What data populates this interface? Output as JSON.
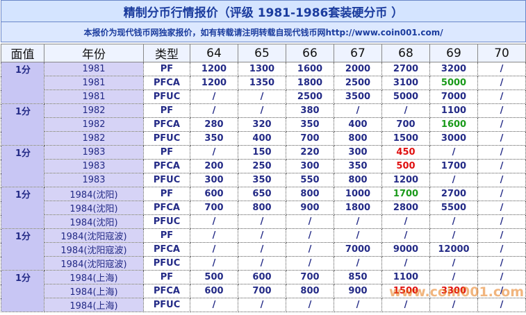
{
  "header": {
    "title": "精制分币行情报价（评级 1981-1986套装硬分币 ）",
    "subtitle": "本报价为现代钱币网独家报价，如有转载请注明转载自现代钱币网http://www.coin001.com/"
  },
  "table": {
    "columns": [
      "面值",
      "年份",
      "类型",
      "64",
      "65",
      "66",
      "67",
      "68",
      "69",
      "70"
    ],
    "groups": [
      {
        "denomination": "1分",
        "rows": [
          {
            "year": "1981",
            "type": "PF",
            "prices": [
              "1200",
              "1300",
              "1600",
              "2000",
              "2700",
              "3200",
              "/"
            ]
          },
          {
            "year": "1981",
            "type": "PFCA",
            "prices": [
              "1200",
              "1350",
              "1800",
              "2500",
              "3100",
              "5000",
              "/"
            ],
            "highlights": [
              {
                "col": 5,
                "color": "#1a9a1a"
              }
            ]
          },
          {
            "year": "1981",
            "type": "PFUC",
            "prices": [
              "/",
              "/",
              "2500",
              "3500",
              "5000",
              "7000",
              "/"
            ]
          }
        ]
      },
      {
        "denomination": "1分",
        "rows": [
          {
            "year": "1982",
            "type": "PF",
            "prices": [
              "/",
              "/",
              "380",
              "/",
              "/",
              "1100",
              "/"
            ]
          },
          {
            "year": "1982",
            "type": "PFCA",
            "prices": [
              "280",
              "320",
              "350",
              "400",
              "700",
              "1600",
              "/"
            ],
            "highlights": [
              {
                "col": 5,
                "color": "#1a9a1a"
              }
            ]
          },
          {
            "year": "1982",
            "type": "PFUC",
            "prices": [
              "350",
              "400",
              "700",
              "800",
              "1500",
              "3000",
              "/"
            ]
          }
        ]
      },
      {
        "denomination": "1分",
        "rows": [
          {
            "year": "1983",
            "type": "PF",
            "prices": [
              "/",
              "150",
              "220",
              "300",
              "450",
              "/",
              "/"
            ],
            "highlights": [
              {
                "col": 4,
                "color": "#e01010"
              }
            ]
          },
          {
            "year": "1983",
            "type": "PFCA",
            "prices": [
              "200",
              "250",
              "300",
              "350",
              "500",
              "1700",
              "/"
            ],
            "highlights": [
              {
                "col": 4,
                "color": "#e01010"
              }
            ]
          },
          {
            "year": "1983",
            "type": "PFUC",
            "prices": [
              "300",
              "350",
              "550",
              "800",
              "1200",
              "/",
              "/"
            ]
          }
        ]
      },
      {
        "denomination": "1分",
        "rows": [
          {
            "year": "1984(沈阳)",
            "type": "PF",
            "prices": [
              "600",
              "650",
              "800",
              "1000",
              "1700",
              "2700",
              "/"
            ],
            "highlights": [
              {
                "col": 4,
                "color": "#1a9a1a"
              }
            ]
          },
          {
            "year": "1984(沈阳)",
            "type": "PFCA",
            "prices": [
              "700",
              "800",
              "900",
              "1800",
              "2800",
              "5500",
              "/"
            ]
          },
          {
            "year": "1984(沈阳)",
            "type": "PFUC",
            "prices": [
              "/",
              "/",
              "/",
              "/",
              "/",
              "/",
              "/"
            ]
          }
        ]
      },
      {
        "denomination": "1分",
        "rows": [
          {
            "year": "1984(沈阳寇波)",
            "type": "PF",
            "prices": [
              "/",
              "/",
              "/",
              "/",
              "/",
              "/",
              "/"
            ]
          },
          {
            "year": "1984(沈阳寇波)",
            "type": "PFCA",
            "prices": [
              "/",
              "/",
              "/",
              "7000",
              "9000",
              "12000",
              "/"
            ]
          },
          {
            "year": "1984(沈阳寇波)",
            "type": "PFUC",
            "prices": [
              "/",
              "/",
              "/",
              "/",
              "/",
              "/",
              "/"
            ]
          }
        ]
      },
      {
        "denomination": "1分",
        "rows": [
          {
            "year": "1984(上海)",
            "type": "PF",
            "prices": [
              "500",
              "600",
              "700",
              "850",
              "1100",
              "/",
              "/"
            ]
          },
          {
            "year": "1984(上海)",
            "type": "PFCA",
            "prices": [
              "600",
              "700",
              "800",
              "900",
              "1500",
              "3300",
              "/"
            ],
            "highlights": [
              {
                "col": 4,
                "color": "#e01010"
              },
              {
                "col": 5,
                "color": "#e01010"
              }
            ]
          },
          {
            "year": "1984(上海)",
            "type": "PFUC",
            "prices": [
              "/",
              "/",
              "/",
              "/",
              "/",
              "/",
              "/"
            ]
          }
        ]
      }
    ]
  },
  "watermark": "www.coin001.com"
}
